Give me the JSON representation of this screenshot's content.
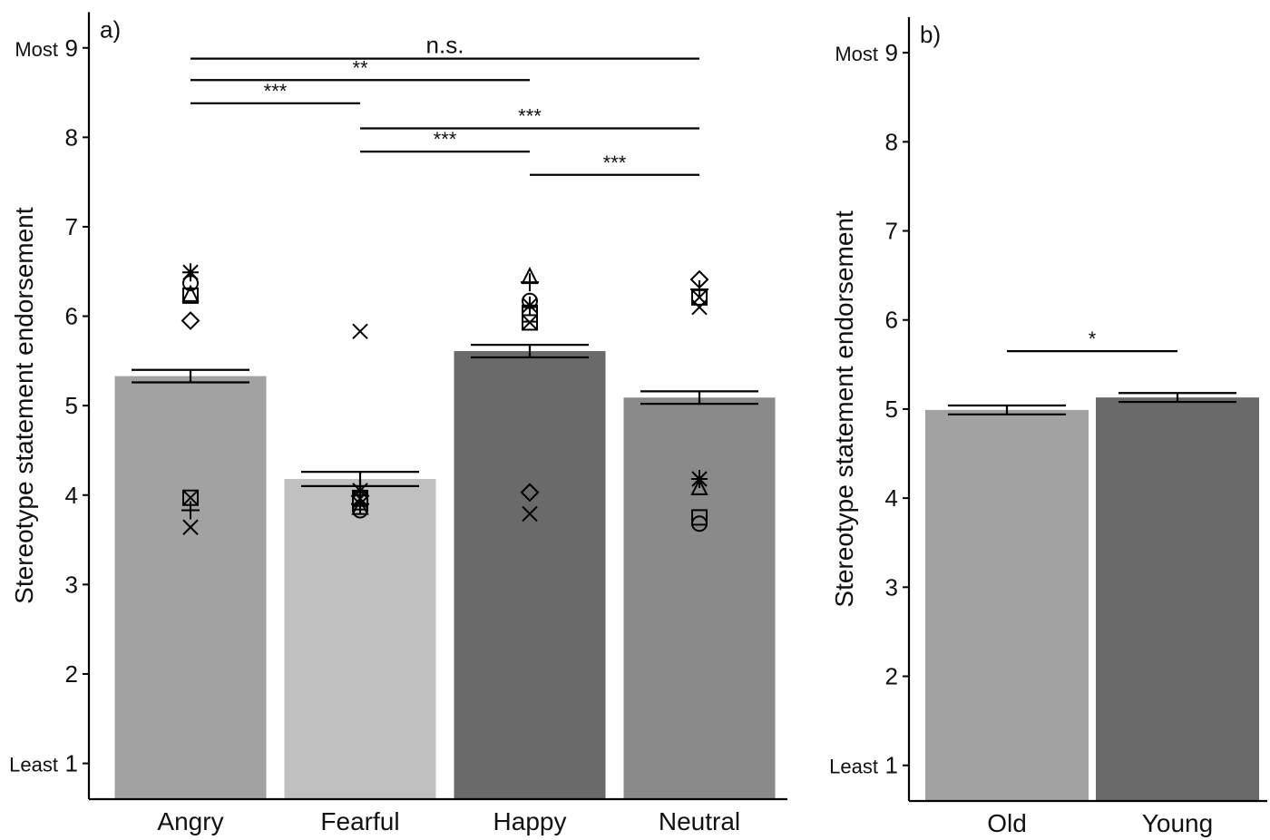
{
  "chart_data": [
    {
      "type": "bar",
      "panel_label": "a)",
      "ylabel": "Stereotype statement endorsement",
      "ylim": [
        0.6,
        9.4
      ],
      "yticks": [
        1,
        2,
        3,
        4,
        5,
        6,
        7,
        8,
        9
      ],
      "ytick_labels": [
        "1",
        "2",
        "3",
        "4",
        "5",
        "6",
        "7",
        "8",
        "9"
      ],
      "y_endpoint_labels": {
        "least": "Least",
        "most": "Most"
      },
      "categories": [
        "Angry",
        "Fearful",
        "Happy",
        "Neutral"
      ],
      "values": [
        5.33,
        4.18,
        5.61,
        5.09
      ],
      "errors": [
        0.07,
        0.08,
        0.07,
        0.07
      ],
      "bar_colors": [
        "#a2a2a2",
        "#c0c0c0",
        "#6a6a6a",
        "#8a8a8a"
      ],
      "points": [
        {
          "category": "Angry",
          "markers": [
            {
              "shape": "asterisk",
              "value": 6.49
            },
            {
              "shape": "circle",
              "value": 6.37
            },
            {
              "shape": "triangle",
              "value": 6.24
            },
            {
              "shape": "square",
              "value": 6.23
            },
            {
              "shape": "diamond",
              "value": 5.95
            },
            {
              "shape": "boxed-x",
              "value": 3.97
            },
            {
              "shape": "plus",
              "value": 3.83
            },
            {
              "shape": "x",
              "value": 3.64
            }
          ]
        },
        {
          "category": "Fearful",
          "markers": [
            {
              "shape": "x",
              "value": 5.83
            },
            {
              "shape": "asterisk",
              "value": 4.05
            },
            {
              "shape": "diamond",
              "value": 3.99
            },
            {
              "shape": "boxed-x",
              "value": 3.96
            },
            {
              "shape": "square",
              "value": 3.92
            },
            {
              "shape": "plus",
              "value": 3.9
            },
            {
              "shape": "triangle",
              "value": 3.86
            },
            {
              "shape": "circle",
              "value": 3.83
            }
          ]
        },
        {
          "category": "Happy",
          "markers": [
            {
              "shape": "triangle",
              "value": 6.44
            },
            {
              "shape": "plus",
              "value": 6.38
            },
            {
              "shape": "circle",
              "value": 6.17
            },
            {
              "shape": "asterisk",
              "value": 6.12
            },
            {
              "shape": "square",
              "value": 6.02
            },
            {
              "shape": "boxed-x",
              "value": 5.93
            },
            {
              "shape": "diamond",
              "value": 4.03
            },
            {
              "shape": "x",
              "value": 3.79
            }
          ]
        },
        {
          "category": "Neutral",
          "markers": [
            {
              "shape": "diamond",
              "value": 6.41
            },
            {
              "shape": "plus",
              "value": 6.3
            },
            {
              "shape": "boxed-x",
              "value": 6.21
            },
            {
              "shape": "x",
              "value": 6.1
            },
            {
              "shape": "asterisk",
              "value": 4.18
            },
            {
              "shape": "triangle",
              "value": 4.08
            },
            {
              "shape": "square",
              "value": 3.75
            },
            {
              "shape": "circle",
              "value": 3.68
            }
          ]
        }
      ],
      "significance": [
        {
          "from": "Angry",
          "to": "Neutral",
          "label": "n.s.",
          "y": 8.88
        },
        {
          "from": "Angry",
          "to": "Happy",
          "label": "**",
          "y": 8.64
        },
        {
          "from": "Angry",
          "to": "Fearful",
          "label": "***",
          "y": 8.38
        },
        {
          "from": "Fearful",
          "to": "Neutral",
          "label": "***",
          "y": 8.1
        },
        {
          "from": "Fearful",
          "to": "Happy",
          "label": "***",
          "y": 7.84
        },
        {
          "from": "Happy",
          "to": "Neutral",
          "label": "***",
          "y": 7.58
        }
      ]
    },
    {
      "type": "bar",
      "panel_label": "b)",
      "ylabel": "Stereotype statement endorsement",
      "ylim": [
        0.6,
        9.4
      ],
      "yticks": [
        1,
        2,
        3,
        4,
        5,
        6,
        7,
        8,
        9
      ],
      "ytick_labels": [
        "1",
        "2",
        "3",
        "4",
        "5",
        "6",
        "7",
        "8",
        "9"
      ],
      "y_endpoint_labels": {
        "least": "Least",
        "most": "Most"
      },
      "categories": [
        "Old",
        "Young"
      ],
      "values": [
        4.99,
        5.13
      ],
      "errors": [
        0.05,
        0.05
      ],
      "bar_colors": [
        "#a2a2a2",
        "#6a6a6a"
      ],
      "significance": [
        {
          "from": "Old",
          "to": "Young",
          "label": "*",
          "y": 5.65
        }
      ]
    }
  ]
}
